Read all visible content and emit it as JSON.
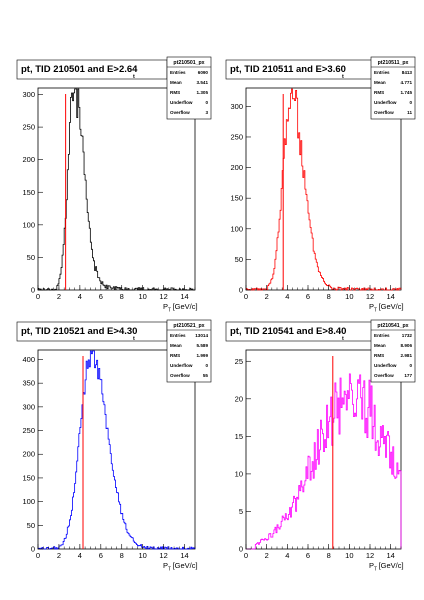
{
  "chart_data": [
    {
      "type": "histogram",
      "title_main": "pt, TID 210501 and E",
      "title_sub": "t",
      "title_cut": ">2.64",
      "xlabel_main": "P",
      "xlabel_sub": "T",
      "xlabel_unit": "[GeV/c]",
      "xlim": [
        0,
        15
      ],
      "ylim": [
        0,
        310
      ],
      "xticks": [
        0,
        2,
        4,
        6,
        8,
        10,
        12,
        14
      ],
      "yticks": [
        0,
        50,
        100,
        150,
        200,
        250,
        300
      ],
      "line_color": "#000000",
      "cut_line_x": 2.64,
      "cut_color": "#ff0000",
      "stats": {
        "name": "pt210501_px",
        "rows": [
          [
            "Entries",
            "6090"
          ],
          [
            "Mean",
            "3.541"
          ],
          [
            "RMS",
            "1.305"
          ],
          [
            "Underflow",
            "0"
          ],
          [
            "Overflow",
            "3"
          ]
        ]
      },
      "profile": {
        "peak": 3.4,
        "peak_value": 300,
        "sigma_left": 0.55,
        "sigma_right": 0.95,
        "noise": 0.12,
        "tail": 15,
        "seed": 11
      }
    },
    {
      "type": "histogram",
      "title_main": "pt, TID 210511 and E",
      "title_sub": "t",
      "title_cut": ">3.60",
      "xlabel_main": "P",
      "xlabel_sub": "T",
      "xlabel_unit": "[GeV/c]",
      "xlim": [
        0,
        15
      ],
      "ylim": [
        0,
        330
      ],
      "xticks": [
        0,
        2,
        4,
        6,
        8,
        10,
        12,
        14
      ],
      "yticks": [
        0,
        50,
        100,
        150,
        200,
        250,
        300
      ],
      "line_color": "#ff0000",
      "cut_line_x": 3.6,
      "cut_color": "#ff0000",
      "stats": {
        "name": "pt210511_px",
        "rows": [
          [
            "Entries",
            "8413"
          ],
          [
            "Mean",
            "4.771"
          ],
          [
            "RMS",
            "1.745"
          ],
          [
            "Underflow",
            "0"
          ],
          [
            "Overflow",
            "11"
          ]
        ]
      },
      "profile": {
        "peak": 4.3,
        "peak_value": 310,
        "sigma_left": 0.75,
        "sigma_right": 1.25,
        "noise": 0.1,
        "tail": 18,
        "seed": 23
      }
    },
    {
      "type": "histogram",
      "title_main": "pt, TID 210521 and E",
      "title_sub": "t",
      "title_cut": ">4.30",
      "xlabel_main": "P",
      "xlabel_sub": "T",
      "xlabel_unit": "[GeV/c]",
      "xlim": [
        0,
        15
      ],
      "ylim": [
        0,
        420
      ],
      "xticks": [
        0,
        2,
        4,
        6,
        8,
        10,
        12,
        14
      ],
      "yticks": [
        0,
        50,
        100,
        150,
        200,
        250,
        300,
        350,
        400
      ],
      "line_color": "#0000ff",
      "cut_line_x": 4.3,
      "cut_color": "#ff0000",
      "stats": {
        "name": "pt210521_px",
        "rows": [
          [
            "Entries",
            "13014"
          ],
          [
            "Mean",
            "5.589"
          ],
          [
            "RMS",
            "1.999"
          ],
          [
            "Underflow",
            "0"
          ],
          [
            "Overflow",
            "55"
          ]
        ]
      },
      "profile": {
        "peak": 5.0,
        "peak_value": 405,
        "sigma_left": 1.0,
        "sigma_right": 1.6,
        "noise": 0.06,
        "tail": 10,
        "seed": 37
      }
    },
    {
      "type": "histogram",
      "title_main": "pt, TID 210541 and E",
      "title_sub": "t",
      "title_cut": ">8.40",
      "xlabel_main": "P",
      "xlabel_sub": "T",
      "xlabel_unit": "[GeV/c]",
      "xlim": [
        0,
        15
      ],
      "ylim": [
        0,
        26.5
      ],
      "xticks": [
        0,
        2,
        4,
        6,
        8,
        10,
        12,
        14
      ],
      "yticks": [
        0,
        5,
        10,
        15,
        20,
        25
      ],
      "line_color": "#ff00ff",
      "cut_line_x": 8.4,
      "cut_color": "#ff0000",
      "stats": {
        "name": "pt210541_px",
        "rows": [
          [
            "Entries",
            "1732"
          ],
          [
            "Mean",
            "8.906"
          ],
          [
            "RMS",
            "2.981"
          ],
          [
            "Underflow",
            "0"
          ],
          [
            "Overflow",
            "177"
          ]
        ]
      },
      "profile": {
        "peak": 10.3,
        "peak_value": 20.5,
        "sigma_left": 3.6,
        "sigma_right": 3.6,
        "noise": 0.22,
        "tail": 0,
        "seed": 53
      }
    }
  ]
}
